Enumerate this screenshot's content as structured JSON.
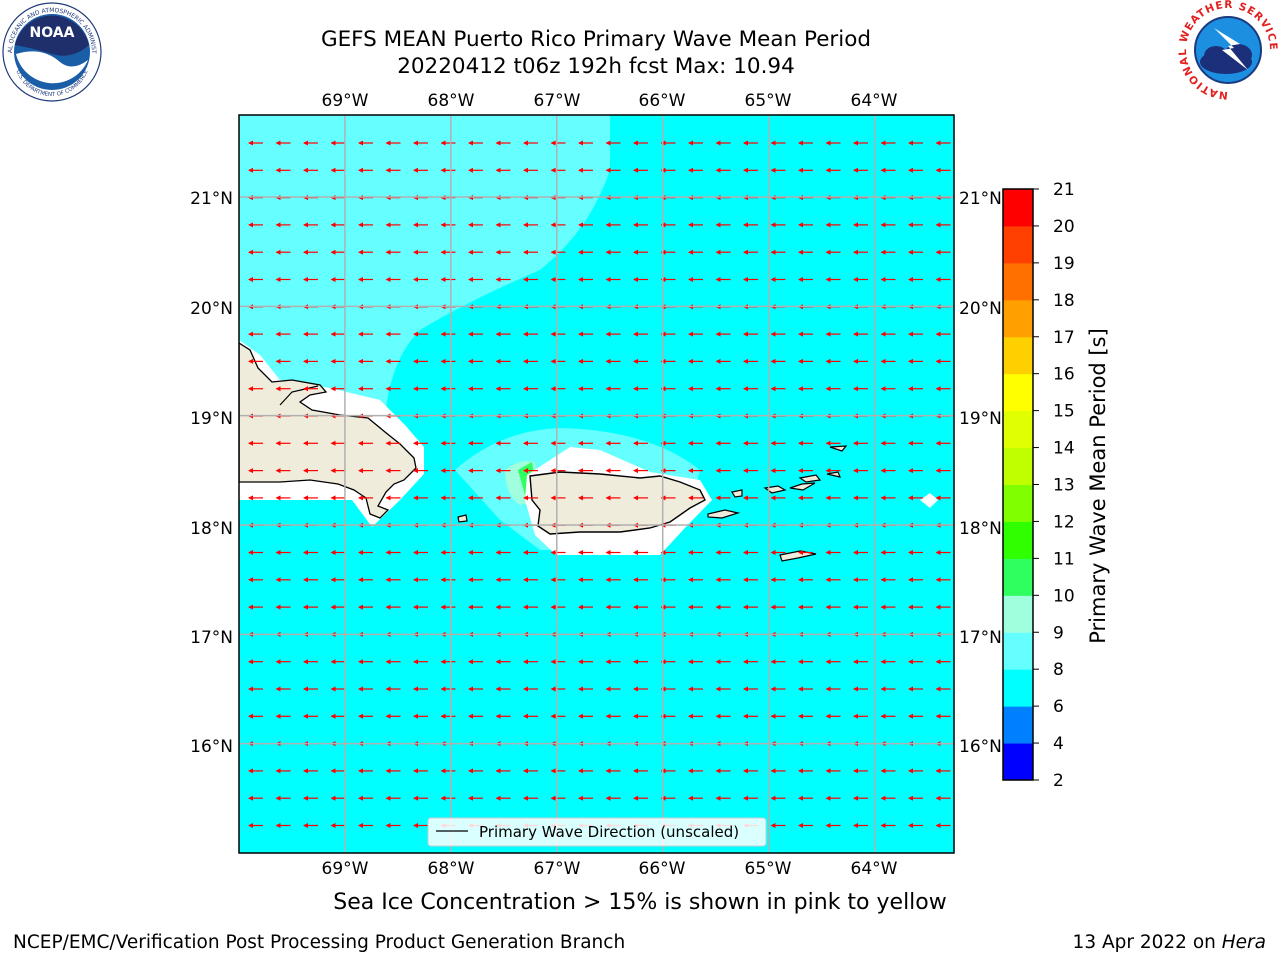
{
  "header": {
    "title_line1": "GEFS MEAN Puerto Rico Primary Wave Mean Period",
    "title_line2": "20220412 t06z 192h fcst   Max: 10.94"
  },
  "logos": {
    "noaa_label": "NOAA",
    "noaa_ring_top": "NATIONAL OCEANIC AND ATMOSPHERIC ADMINISTRATION",
    "noaa_ring_bottom": "U.S. DEPARTMENT OF COMMERCE",
    "nws_ring": "NATIONAL WEATHER SERVICE"
  },
  "map": {
    "lon_labels": [
      "69°W",
      "68°W",
      "67°W",
      "66°W",
      "65°W",
      "64°W"
    ],
    "lat_labels": [
      "21°N",
      "20°N",
      "19°N",
      "18°N",
      "17°N",
      "16°N"
    ],
    "lon_values": [
      -69,
      -68,
      -67,
      -66,
      -65,
      -64
    ],
    "lat_values": [
      21,
      20,
      19,
      18,
      17,
      16
    ],
    "extent": {
      "lon_min": -70.0,
      "lon_max": -63.25,
      "lat_min": 15.0,
      "lat_max": 21.75
    },
    "legend_label": "Primary Wave Direction (unscaled)",
    "arrow_color": "#ff0000",
    "background_field_color": "#00ffff",
    "land_color": "#efecdc"
  },
  "colorbar": {
    "label": "Primary Wave Mean Period [s]",
    "ticks": [
      "2",
      "4",
      "6",
      "8",
      "9",
      "10",
      "11",
      "12",
      "13",
      "14",
      "15",
      "16",
      "17",
      "18",
      "19",
      "20",
      "21"
    ],
    "colors": [
      "#0000ff",
      "#0080ff",
      "#00ffff",
      "#66ffff",
      "#a0ffdd",
      "#30ff60",
      "#30ff00",
      "#80ff00",
      "#c0ff00",
      "#e0ff00",
      "#ffff00",
      "#ffd000",
      "#ffa000",
      "#ff7000",
      "#ff4000",
      "#ff0000"
    ]
  },
  "footer": {
    "note": "Sea Ice Concentration > 15% is shown in pink to yellow",
    "left": "NCEP/EMC/Verification Post Processing Product Generation Branch",
    "right_prefix": "13 Apr 2022 on ",
    "right_machine": "Hera"
  }
}
